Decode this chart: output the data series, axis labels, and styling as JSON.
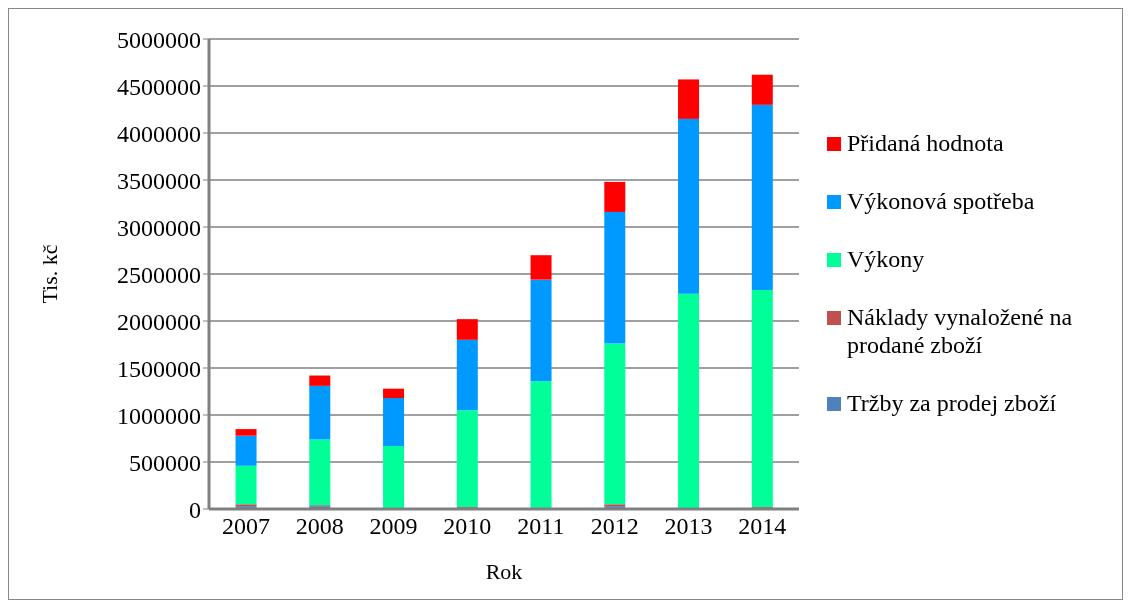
{
  "chart_data": {
    "type": "bar",
    "stacked": true,
    "xlabel": "Rok",
    "ylabel": "Tis. kč",
    "categories": [
      "2007",
      "2008",
      "2009",
      "2010",
      "2011",
      "2012",
      "2013",
      "2014"
    ],
    "series": [
      {
        "name": "Tržby za prodej zboží",
        "color": "#4f81bd",
        "values": [
          30000,
          30000,
          null,
          null,
          null,
          30000,
          null,
          null
        ]
      },
      {
        "name": "Náklady vynaložené na prodané zboží",
        "color": "#c0504d",
        "values": [
          20000,
          10000,
          null,
          20000,
          null,
          20000,
          null,
          20000
        ]
      },
      {
        "name": "Výkony",
        "color": "#00ff99",
        "values": [
          410000,
          700000,
          670000,
          1030000,
          1360000,
          1710000,
          2290000,
          2310000
        ]
      },
      {
        "name": "Výkonová spotřeba",
        "color": "#0099ff",
        "values": [
          320000,
          570000,
          510000,
          750000,
          1080000,
          1400000,
          1860000,
          1970000
        ]
      },
      {
        "name": "Přidaná hodnota",
        "color": "#ff0000",
        "values": [
          70000,
          110000,
          100000,
          220000,
          260000,
          320000,
          420000,
          320000
        ]
      }
    ],
    "ylim": [
      0,
      5000000
    ],
    "yticks": [
      0,
      500000,
      1000000,
      1500000,
      2000000,
      2500000,
      3000000,
      3500000,
      4000000,
      4500000,
      5000000
    ],
    "grid": "y",
    "legend": "right"
  }
}
